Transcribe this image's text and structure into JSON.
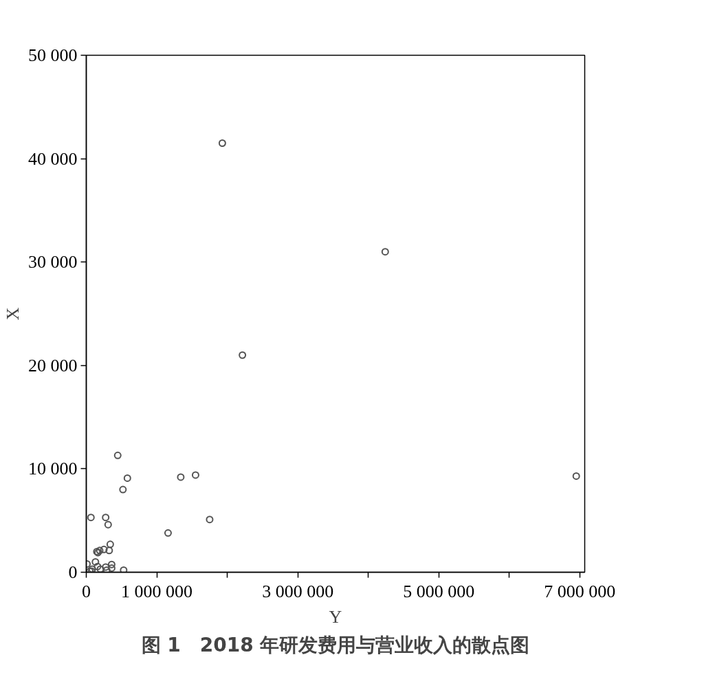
{
  "chart_data": {
    "type": "scatter",
    "title": "图 1　2018 年研发费用与营业收入的散点图",
    "xlabel": "Y",
    "ylabel": "X",
    "xlim": [
      0,
      7070000
    ],
    "ylim": [
      0,
      50000
    ],
    "xticks": [
      0,
      {
        "value": 1000000,
        "label": "1 000 000"
      },
      {
        "value": 2000000,
        "label": null
      },
      {
        "value": 3000000,
        "label": "3 000 000"
      },
      {
        "value": 4000000,
        "label": null
      },
      {
        "value": 5000000,
        "label": "5 000 000"
      },
      {
        "value": 6000000,
        "label": null
      },
      {
        "value": 7000000,
        "label": "7 000 000"
      }
    ],
    "yticks": [
      0,
      {
        "value": 10000,
        "label": "10 000"
      },
      {
        "value": 20000,
        "label": "20 000"
      },
      {
        "value": 30000,
        "label": "30 000"
      },
      {
        "value": 40000,
        "label": "40 000"
      },
      {
        "value": 50000,
        "label": "50 000"
      }
    ],
    "grid": false,
    "marker": "circle",
    "series": [
      {
        "color": "#555555",
        "x": [
          1930000,
          4240000,
          2215000,
          6950000,
          446000,
          583000,
          520000,
          1340000,
          1550000,
          1750000,
          1160000,
          66000,
          275000,
          310000,
          340000,
          325000,
          250000,
          190000,
          150000,
          165000,
          10000,
          130000,
          50000,
          85000,
          160000,
          275000,
          360000,
          360000,
          290000,
          530000,
          75000,
          200000
        ],
        "values": [
          41500,
          31000,
          21000,
          9300,
          11300,
          9100,
          8000,
          9200,
          9400,
          5100,
          3800,
          5300,
          5300,
          4600,
          2700,
          2100,
          2200,
          2100,
          2000,
          1900,
          800,
          1000,
          100,
          300,
          550,
          500,
          750,
          400,
          200,
          200,
          100,
          300
        ]
      }
    ]
  }
}
